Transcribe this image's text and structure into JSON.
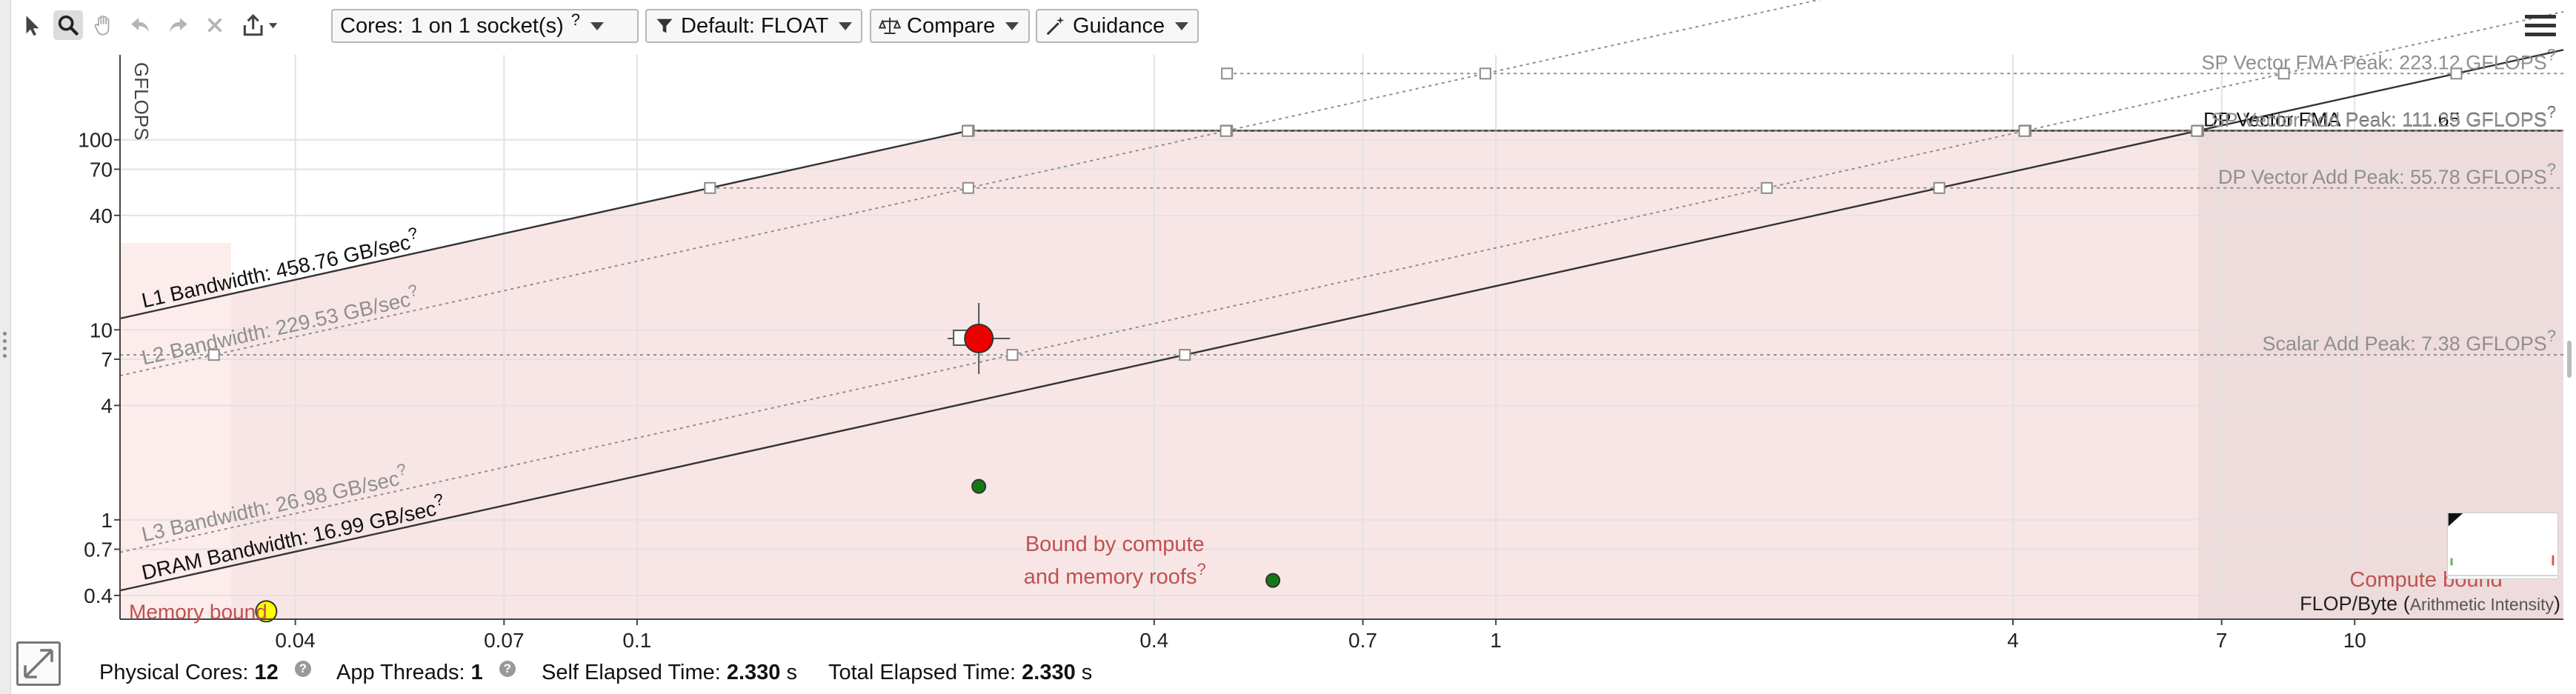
{
  "toolbar": {
    "cores_label": "Cores:",
    "cores_value": "1 on 1 socket(s)",
    "cores_help": "?",
    "filter_value": "Default: FLOAT",
    "compare_label": "Compare",
    "guidance_label": "Guidance"
  },
  "chart_data": {
    "type": "scatter",
    "title": "",
    "xlabel": "FLOP/Byte (Arithmetic Intensity)",
    "xlabel_main": "FLOP/Byte (",
    "xlabel_sub": "Arithmetic Intensity",
    "xlabel_close": ")",
    "ylabel": "GFLOPS",
    "x_scale": "log",
    "y_scale": "log",
    "xlim": [
      0.025,
      17.5
    ],
    "ylim": [
      0.3,
      280
    ],
    "x_ticks": [
      {
        "v": 0.04,
        "label": "0.04"
      },
      {
        "v": 0.07,
        "label": "0.07"
      },
      {
        "v": 0.1,
        "label": "0.1"
      },
      {
        "v": 0.4,
        "label": "0.4"
      },
      {
        "v": 0.7,
        "label": "0.7"
      },
      {
        "v": 1,
        "label": "1"
      },
      {
        "v": 4,
        "label": "4"
      },
      {
        "v": 7,
        "label": "7"
      },
      {
        "v": 10,
        "label": "10"
      }
    ],
    "y_ticks": [
      {
        "v": 0.4,
        "label": "0.4"
      },
      {
        "v": 0.7,
        "label": "0.7"
      },
      {
        "v": 1,
        "label": "1"
      },
      {
        "v": 4,
        "label": "4"
      },
      {
        "v": 7,
        "label": "7"
      },
      {
        "v": 10,
        "label": "10"
      },
      {
        "v": 40,
        "label": "40"
      },
      {
        "v": 70,
        "label": "70"
      },
      {
        "v": 100,
        "label": "100"
      }
    ],
    "memory_roofs": [
      {
        "name": "L1 Bandwidth: 458.76 GB/sec",
        "bandwidth": 458.76,
        "style": "solid"
      },
      {
        "name": "L2 Bandwidth: 229.53 GB/sec",
        "bandwidth": 229.53,
        "style": "dotted"
      },
      {
        "name": "L3 Bandwidth: 26.98 GB/sec",
        "bandwidth": 26.98,
        "style": "dotted"
      },
      {
        "name": "DRAM Bandwidth: 16.99 GB/sec",
        "bandwidth": 16.99,
        "style": "solid"
      }
    ],
    "compute_roofs": [
      {
        "name": "SP Vector FMA Peak: 223.12 GFLOPS",
        "peak": 223.12,
        "style": "dotted"
      },
      {
        "name": "DP Vector FMA Peak: 111.65 GFLOPS",
        "peak": 111.65,
        "style": "solid"
      },
      {
        "name": "SP Vector Add Peak: 111.29 GFLOPS",
        "peak": 111.29,
        "style": "dotted"
      },
      {
        "name": "DP Vector Add Peak: 55.78 GFLOPS",
        "peak": 55.78,
        "style": "dotted"
      },
      {
        "name": "Scalar Add Peak: 7.38 GFLOPS",
        "peak": 7.38,
        "style": "dotted"
      }
    ],
    "points": [
      {
        "x": 0.25,
        "y": 9.0,
        "color": "#ee0000",
        "size": "large"
      },
      {
        "x": 0.25,
        "y": 1.5,
        "color": "#137a13",
        "size": "small"
      },
      {
        "x": 0.55,
        "y": 0.48,
        "color": "#137a13",
        "size": "small"
      },
      {
        "x": 0.037,
        "y": 0.33,
        "color": "#ffff00",
        "size": "medium"
      }
    ],
    "region_labels": {
      "memory_bound": "Memory bound",
      "both_bound_line1": "Bound by compute",
      "both_bound_line2": "and memory roofs",
      "compute_bound": "Compute bound"
    },
    "help_mark": "?",
    "grid": true,
    "colors": {
      "region_fill": "#f8e6e6",
      "memory_strip": "#fcecec",
      "compute_strip": "#eedcdc",
      "roof_solid": "#333333",
      "roof_dotted": "#8f8f8f",
      "region_text": "#c05050"
    }
  },
  "status": {
    "physical_cores_label": "Physical Cores:",
    "physical_cores_value": "12",
    "app_threads_label": "App Threads:",
    "app_threads_value": "1",
    "self_time_label": "Self Elapsed Time:",
    "self_time_value": "2.330",
    "self_time_unit": "s",
    "total_time_label": "Total Elapsed Time:",
    "total_time_value": "2.330",
    "total_time_unit": "s",
    "help_mark": "?"
  }
}
